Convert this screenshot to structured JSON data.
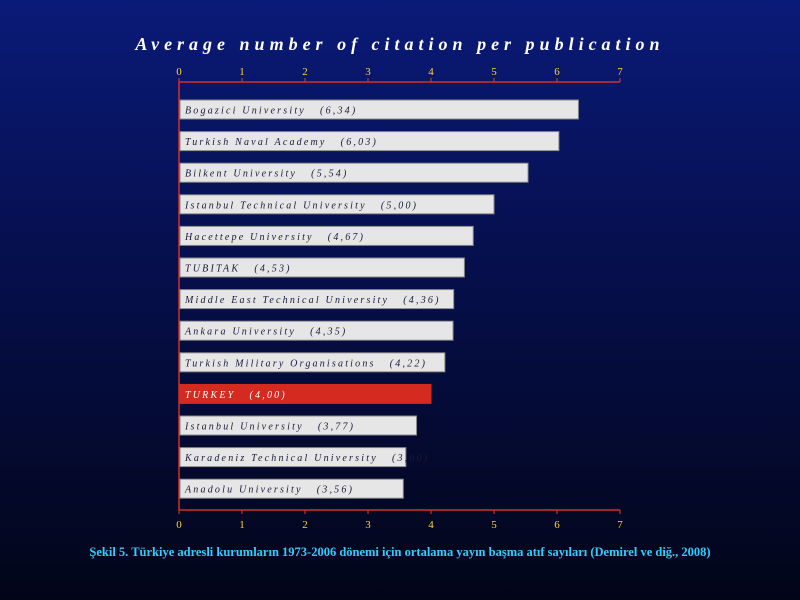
{
  "chart_data": {
    "type": "bar",
    "orientation": "horizontal",
    "title": "Average number of citation per publication",
    "categories": [
      "Bogazici University",
      "Turkish Naval Academy",
      "Bilkent University",
      "Istanbul Technical University",
      "Hacettepe University",
      "TUBITAK",
      "Middle East Technical University",
      "Ankara University",
      "Turkish Military Organisations",
      "TURKEY",
      "Istanbul University",
      "Karadeniz Technical University",
      "Anadolu University"
    ],
    "values": [
      6.34,
      6.03,
      5.54,
      5.0,
      4.67,
      4.53,
      4.36,
      4.35,
      4.22,
      4.0,
      3.77,
      3.6,
      3.56
    ],
    "bar_labels": [
      "Bogazici University   (6,34)",
      "Turkish Naval Academy   (6,03)",
      "Bilkent University   (5,54)",
      "Istanbul Technical University   (5,00)",
      "Hacettepe University   (4,67)",
      "TUBITAK   (4,53)",
      "Middle East Technical University   (4,36)",
      "Ankara University   (4,35)",
      "Turkish Military Organisations   (4,22)",
      "TURKEY   (4,00)",
      "Istanbul University   (3,77)",
      "Karadeniz Technical University   (3,60)",
      "Anadolu University   (3,56)"
    ],
    "highlight": "TURKEY",
    "xlim": [
      0,
      7
    ],
    "xticks": [
      "0",
      "1",
      "2",
      "3",
      "4",
      "5",
      "6",
      "7"
    ],
    "axis_position": [
      "top",
      "bottom"
    ],
    "colors": {
      "bar": "#e6e6e6",
      "bar_border": "#8a8a8a",
      "highlight_bar": "#d42a1f",
      "bar_text": "#1a1a3a",
      "highlight_text": "#ffffff",
      "axis": "#d0302a",
      "tick_label": "#ffd23a"
    }
  },
  "caption": "Şekil 5. Türkiye adresli kurumların 1973-2006 dönemi için ortalama yayın başma atıf sayıları (Demirel ve diğ., 2008)"
}
